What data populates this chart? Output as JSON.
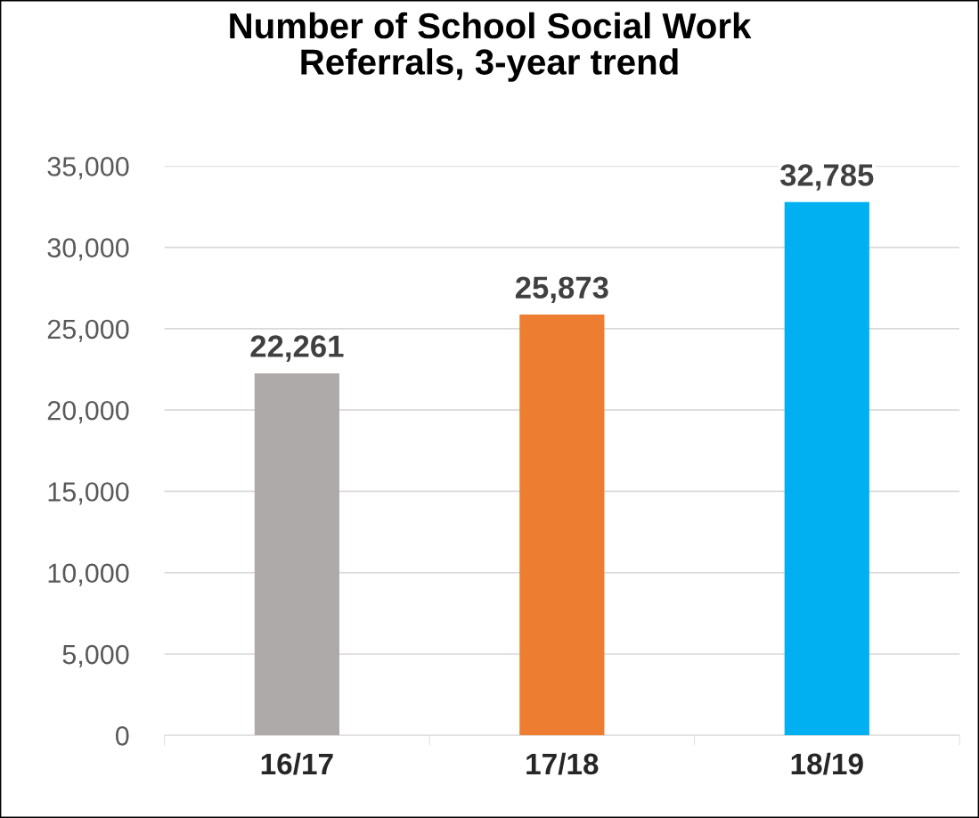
{
  "chart_data": {
    "type": "bar",
    "title": "Number of School Social Work\nReferrals, 3-year trend",
    "categories": [
      "16/17",
      "17/18",
      "18/19"
    ],
    "values": [
      22261,
      25873,
      32785
    ],
    "colors": [
      "#aeaaaa",
      "#ed7d31",
      "#00b0f0"
    ],
    "value_labels": [
      "22,261",
      "25,873",
      "32,785"
    ],
    "ylim": [
      0,
      35000
    ],
    "yticks": [
      {
        "value": 0,
        "label": "0"
      },
      {
        "value": 5000,
        "label": "5,000"
      },
      {
        "value": 10000,
        "label": "10,000"
      },
      {
        "value": 15000,
        "label": "15,000"
      },
      {
        "value": 20000,
        "label": "20,000"
      },
      {
        "value": 25000,
        "label": "25,000"
      },
      {
        "value": 30000,
        "label": "30,000"
      },
      {
        "value": 35000,
        "label": "35,000"
      }
    ],
    "grid": "y",
    "legend": false
  }
}
